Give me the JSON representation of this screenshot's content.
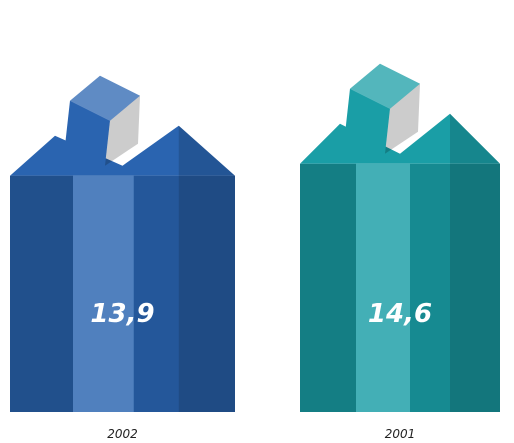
{
  "chart_data": {
    "type": "bar",
    "categories": [
      "2002",
      "2001"
    ],
    "values": [
      13.9,
      14.6
    ],
    "value_labels": [
      "13,9",
      "14,6"
    ],
    "colors": [
      "#2a64b0",
      "#1a9ea6"
    ]
  }
}
